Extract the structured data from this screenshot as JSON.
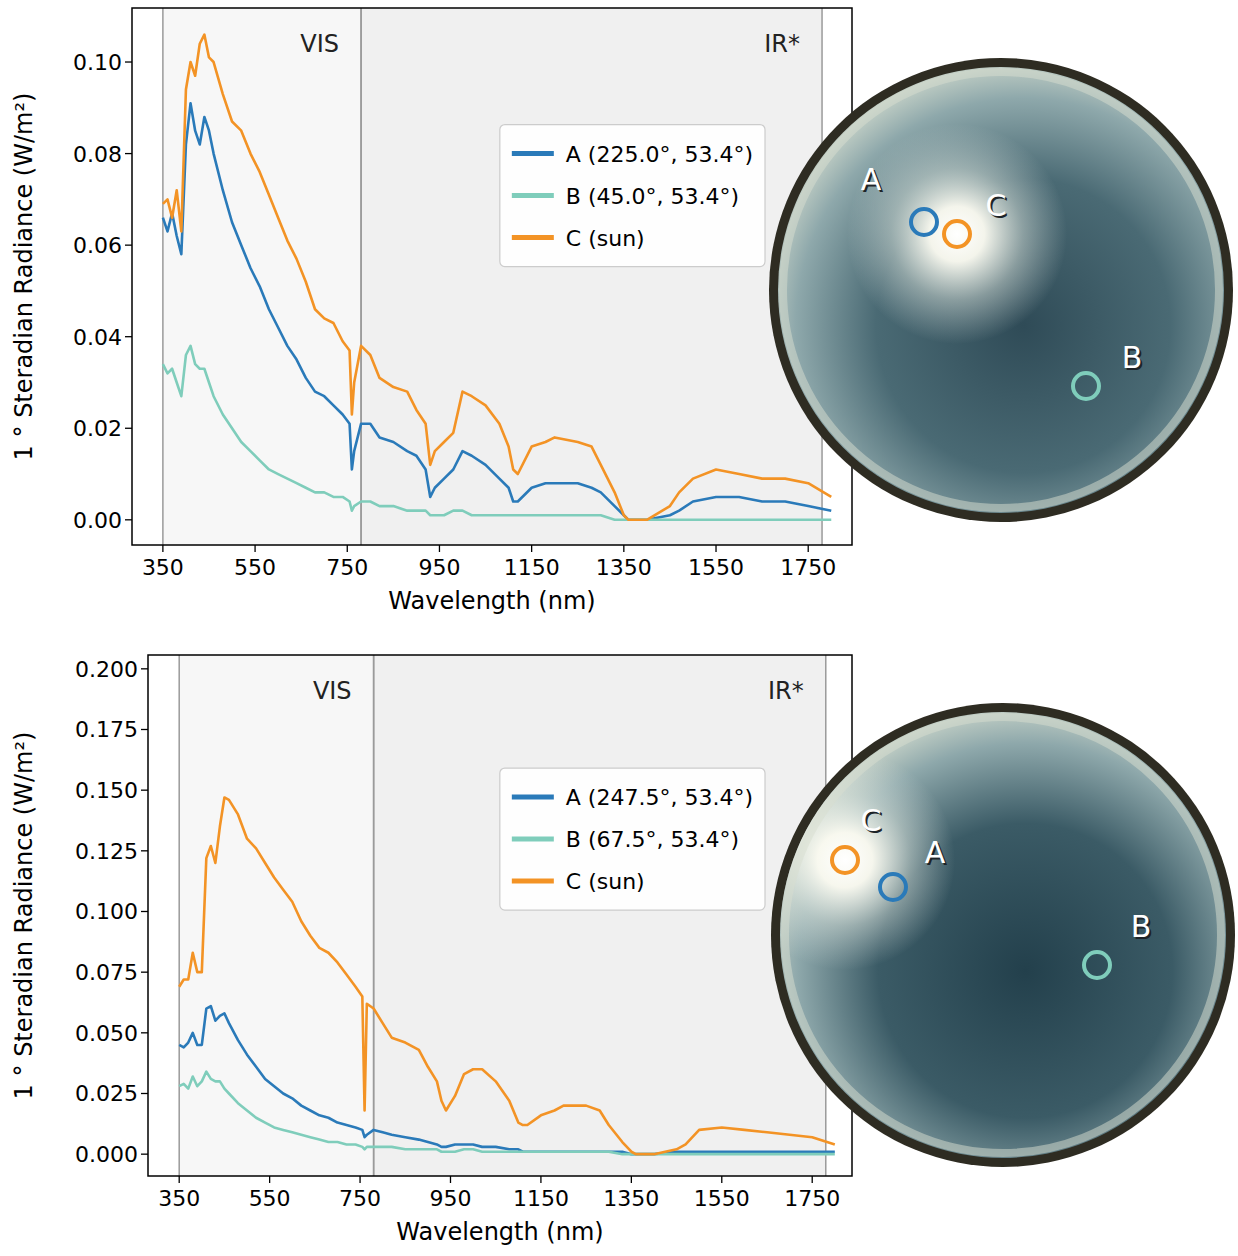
{
  "chart_data": [
    {
      "type": "line",
      "x_label": "Wavelength (nm)",
      "y_label": "1 ° Steradian Radiance (W/m²)",
      "x": [
        350,
        360,
        370,
        380,
        390,
        400,
        410,
        420,
        430,
        440,
        450,
        460,
        480,
        500,
        520,
        540,
        560,
        580,
        600,
        620,
        640,
        660,
        680,
        700,
        720,
        740,
        755,
        760,
        765,
        780,
        800,
        820,
        850,
        880,
        900,
        920,
        930,
        940,
        960,
        980,
        1000,
        1020,
        1050,
        1080,
        1100,
        1110,
        1120,
        1150,
        1180,
        1200,
        1250,
        1280,
        1300,
        1330,
        1350,
        1360,
        1400,
        1450,
        1470,
        1500,
        1550,
        1600,
        1650,
        1700,
        1750,
        1800
      ],
      "xlim": [
        283,
        1845
      ],
      "xticks": [
        350,
        550,
        750,
        950,
        1150,
        1350,
        1550,
        1750
      ],
      "ylim": [
        -0.0055,
        0.1118
      ],
      "yticks": [
        {
          "value": 0,
          "label": "0.00"
        },
        {
          "value": 0.02,
          "label": "0.02"
        },
        {
          "value": 0.04,
          "label": "0.04"
        },
        {
          "value": 0.06,
          "label": "0.06"
        },
        {
          "value": 0.08,
          "label": "0.08"
        },
        {
          "value": 0.1,
          "label": "0.10"
        }
      ],
      "grid": false,
      "legend": "upper right",
      "regions": [
        {
          "label": "VIS",
          "start": 350,
          "end": 780
        },
        {
          "label": "IR*",
          "start": 780,
          "end": 1780
        }
      ],
      "image_labels": [
        "A",
        "B",
        "C"
      ],
      "series": [
        {
          "name": "A (225.0°, 53.4°)",
          "color": "#2a7ab9",
          "values": [
            0.066,
            0.063,
            0.067,
            0.062,
            0.058,
            0.082,
            0.091,
            0.085,
            0.082,
            0.088,
            0.085,
            0.08,
            0.072,
            0.065,
            0.06,
            0.055,
            0.051,
            0.046,
            0.042,
            0.038,
            0.035,
            0.031,
            0.028,
            0.027,
            0.025,
            0.023,
            0.021,
            0.011,
            0.015,
            0.021,
            0.021,
            0.018,
            0.017,
            0.015,
            0.014,
            0.011,
            0.005,
            0.007,
            0.009,
            0.011,
            0.015,
            0.014,
            0.012,
            0.009,
            0.007,
            0.004,
            0.004,
            0.007,
            0.008,
            0.008,
            0.008,
            0.007,
            0.006,
            0.003,
            0.001,
            0,
            0,
            0.001,
            0.002,
            0.004,
            0.005,
            0.005,
            0.004,
            0.004,
            0.003,
            0.002
          ]
        },
        {
          "name": "B (45.0°, 53.4°)",
          "color": "#7fcdbb",
          "values": [
            0.034,
            0.032,
            0.033,
            0.03,
            0.027,
            0.036,
            0.038,
            0.034,
            0.033,
            0.033,
            0.03,
            0.027,
            0.023,
            0.02,
            0.017,
            0.015,
            0.013,
            0.011,
            0.01,
            0.009,
            0.008,
            0.007,
            0.006,
            0.006,
            0.005,
            0.005,
            0.004,
            0.002,
            0.003,
            0.004,
            0.004,
            0.003,
            0.003,
            0.002,
            0.002,
            0.002,
            0.001,
            0.001,
            0.001,
            0.002,
            0.002,
            0.001,
            0.001,
            0.001,
            0.001,
            0.001,
            0.001,
            0.001,
            0.001,
            0.001,
            0.001,
            0.001,
            0.001,
            0,
            0,
            0,
            0,
            0,
            0,
            0,
            0,
            0,
            0,
            0,
            0,
            0
          ]
        },
        {
          "name": "C (sun)",
          "color": "#f39325",
          "values": [
            0.069,
            0.07,
            0.066,
            0.072,
            0.063,
            0.094,
            0.1,
            0.097,
            0.104,
            0.106,
            0.101,
            0.1,
            0.093,
            0.087,
            0.085,
            0.08,
            0.076,
            0.071,
            0.066,
            0.061,
            0.057,
            0.052,
            0.046,
            0.044,
            0.043,
            0.039,
            0.037,
            0.023,
            0.03,
            0.038,
            0.036,
            0.031,
            0.029,
            0.028,
            0.024,
            0.021,
            0.012,
            0.015,
            0.017,
            0.019,
            0.028,
            0.027,
            0.025,
            0.021,
            0.016,
            0.011,
            0.01,
            0.016,
            0.017,
            0.018,
            0.017,
            0.016,
            0.012,
            0.006,
            0.001,
            0,
            0,
            0.003,
            0.006,
            0.009,
            0.011,
            0.01,
            0.009,
            0.009,
            0.008,
            0.005
          ]
        }
      ]
    },
    {
      "type": "line",
      "x_label": "Wavelength (nm)",
      "y_label": "1 ° Steradian Radiance (W/m²)",
      "x": [
        350,
        360,
        370,
        380,
        390,
        400,
        410,
        420,
        430,
        440,
        450,
        460,
        480,
        500,
        520,
        540,
        560,
        580,
        600,
        620,
        640,
        660,
        680,
        700,
        720,
        740,
        755,
        760,
        765,
        780,
        800,
        820,
        850,
        880,
        900,
        920,
        930,
        940,
        960,
        980,
        1000,
        1020,
        1050,
        1080,
        1100,
        1110,
        1120,
        1150,
        1180,
        1200,
        1250,
        1280,
        1300,
        1330,
        1350,
        1360,
        1400,
        1450,
        1470,
        1500,
        1550,
        1600,
        1650,
        1700,
        1750,
        1800
      ],
      "xlim": [
        281,
        1838
      ],
      "xticks": [
        350,
        550,
        750,
        950,
        1150,
        1350,
        1550,
        1750
      ],
      "ylim": [
        -0.009,
        0.2057
      ],
      "yticks": [
        {
          "value": 0,
          "label": "0.000"
        },
        {
          "value": 0.025,
          "label": "0.025"
        },
        {
          "value": 0.05,
          "label": "0.050"
        },
        {
          "value": 0.075,
          "label": "0.075"
        },
        {
          "value": 0.1,
          "label": "0.100"
        },
        {
          "value": 0.125,
          "label": "0.125"
        },
        {
          "value": 0.15,
          "label": "0.150"
        },
        {
          "value": 0.175,
          "label": "0.175"
        },
        {
          "value": 0.2,
          "label": "0.200"
        }
      ],
      "grid": false,
      "legend": "upper right",
      "regions": [
        {
          "label": "VIS",
          "start": 350,
          "end": 780
        },
        {
          "label": "IR*",
          "start": 780,
          "end": 1780
        }
      ],
      "image_labels": [
        "A",
        "B",
        "C"
      ],
      "series": [
        {
          "name": "A (247.5°, 53.4°)",
          "color": "#2a7ab9",
          "values": [
            0.045,
            0.044,
            0.046,
            0.05,
            0.045,
            0.045,
            0.06,
            0.061,
            0.055,
            0.057,
            0.058,
            0.054,
            0.047,
            0.041,
            0.036,
            0.031,
            0.028,
            0.025,
            0.023,
            0.02,
            0.018,
            0.016,
            0.015,
            0.013,
            0.012,
            0.011,
            0.01,
            0.007,
            0.008,
            0.01,
            0.009,
            0.008,
            0.007,
            0.006,
            0.005,
            0.004,
            0.003,
            0.003,
            0.004,
            0.004,
            0.004,
            0.003,
            0.003,
            0.002,
            0.002,
            0.001,
            0.001,
            0.001,
            0.001,
            0.001,
            0.001,
            0.001,
            0.001,
            0.001,
            0,
            0,
            0,
            0.001,
            0.001,
            0.001,
            0.001,
            0.001,
            0.001,
            0.001,
            0.001,
            0.001
          ]
        },
        {
          "name": "B (67.5°, 53.4°)",
          "color": "#7fcdbb",
          "values": [
            0.028,
            0.029,
            0.027,
            0.032,
            0.028,
            0.03,
            0.034,
            0.031,
            0.03,
            0.03,
            0.027,
            0.025,
            0.021,
            0.018,
            0.015,
            0.013,
            0.011,
            0.01,
            0.009,
            0.008,
            0.007,
            0.006,
            0.005,
            0.005,
            0.004,
            0.004,
            0.003,
            0.002,
            0.003,
            0.003,
            0.003,
            0.003,
            0.002,
            0.002,
            0.002,
            0.002,
            0.001,
            0.001,
            0.001,
            0.002,
            0.002,
            0.001,
            0.001,
            0.001,
            0.001,
            0.001,
            0.001,
            0.001,
            0.001,
            0.001,
            0.001,
            0.001,
            0.001,
            0,
            0,
            0,
            0,
            0,
            0,
            0,
            0,
            0,
            0,
            0,
            0,
            0
          ]
        },
        {
          "name": "C (sun)",
          "color": "#f39325",
          "values": [
            0.069,
            0.072,
            0.072,
            0.083,
            0.075,
            0.075,
            0.122,
            0.127,
            0.12,
            0.135,
            0.147,
            0.146,
            0.14,
            0.13,
            0.126,
            0.12,
            0.114,
            0.109,
            0.104,
            0.096,
            0.09,
            0.085,
            0.083,
            0.079,
            0.074,
            0.069,
            0.065,
            0.018,
            0.062,
            0.06,
            0.054,
            0.048,
            0.046,
            0.043,
            0.036,
            0.03,
            0.022,
            0.018,
            0.024,
            0.033,
            0.035,
            0.035,
            0.03,
            0.022,
            0.013,
            0.012,
            0.012,
            0.016,
            0.018,
            0.02,
            0.02,
            0.018,
            0.012,
            0.005,
            0.001,
            0,
            0,
            0.002,
            0.004,
            0.01,
            0.011,
            0.01,
            0.009,
            0.008,
            0.007,
            0.004
          ]
        }
      ]
    }
  ]
}
